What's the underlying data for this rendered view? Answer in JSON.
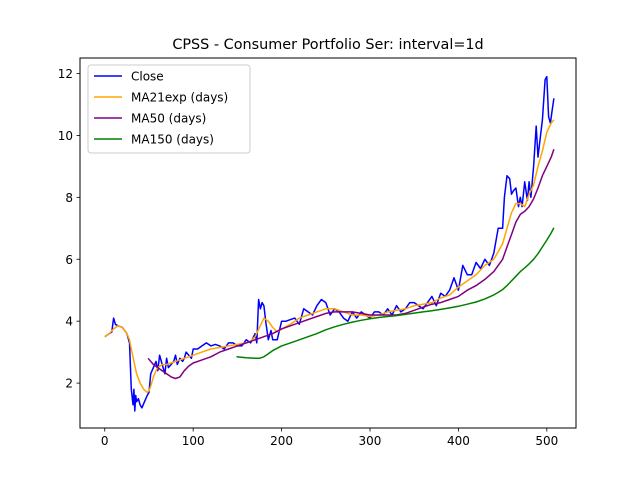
{
  "chart_data": {
    "type": "line",
    "title": "CPSS - Consumer Portfolio Ser: interval=1d",
    "xlabel": "",
    "ylabel": "",
    "xlim": [
      -28,
      533
    ],
    "ylim": [
      0.55,
      12.5
    ],
    "xticks": [
      0,
      100,
      200,
      300,
      400,
      500
    ],
    "yticks": [
      2,
      4,
      6,
      8,
      10,
      12
    ],
    "grid": false,
    "legend_position": "top-left",
    "series": [
      {
        "name": "Close",
        "color": "#0000ff",
        "x": [
          0,
          5,
          8,
          10,
          12,
          15,
          20,
          25,
          28,
          30,
          32,
          33,
          34,
          35,
          36,
          38,
          40,
          42,
          45,
          48,
          50,
          52,
          55,
          58,
          60,
          62,
          65,
          68,
          70,
          72,
          75,
          78,
          80,
          82,
          85,
          88,
          90,
          92,
          95,
          98,
          100,
          105,
          110,
          115,
          120,
          125,
          130,
          135,
          140,
          145,
          150,
          155,
          160,
          165,
          170,
          172,
          174,
          176,
          178,
          180,
          182,
          185,
          188,
          190,
          195,
          200,
          205,
          210,
          215,
          220,
          225,
          230,
          235,
          240,
          245,
          250,
          255,
          260,
          265,
          270,
          275,
          280,
          285,
          290,
          295,
          300,
          305,
          310,
          315,
          320,
          325,
          330,
          335,
          340,
          345,
          350,
          355,
          360,
          365,
          370,
          375,
          380,
          385,
          390,
          395,
          400,
          405,
          410,
          415,
          420,
          425,
          430,
          435,
          440,
          445,
          450,
          452,
          455,
          458,
          460,
          462,
          465,
          468,
          470,
          472,
          475,
          478,
          480,
          482,
          485,
          488,
          490,
          492,
          495,
          498,
          500,
          502,
          504,
          506,
          508
        ],
        "values": [
          3.5,
          3.6,
          3.65,
          4.1,
          3.9,
          3.85,
          3.8,
          3.6,
          3.3,
          1.8,
          1.3,
          1.8,
          1.1,
          1.6,
          1.4,
          1.5,
          1.3,
          1.2,
          1.4,
          1.6,
          1.7,
          2.3,
          2.5,
          2.7,
          2.4,
          2.9,
          2.6,
          2.3,
          2.8,
          2.5,
          2.6,
          2.7,
          2.9,
          2.6,
          2.8,
          2.7,
          2.8,
          3.0,
          2.9,
          2.8,
          3.1,
          3.1,
          3.2,
          3.3,
          3.2,
          3.25,
          3.2,
          3.1,
          3.3,
          3.3,
          3.2,
          3.2,
          3.4,
          3.3,
          3.6,
          3.3,
          4.7,
          4.4,
          4.6,
          4.5,
          4.0,
          3.4,
          3.7,
          3.4,
          3.4,
          4.0,
          4.0,
          4.05,
          4.1,
          3.9,
          4.4,
          4.3,
          4.2,
          4.5,
          4.7,
          4.6,
          4.2,
          4.4,
          4.3,
          4.1,
          4.0,
          4.3,
          4.1,
          4.3,
          4.2,
          4.1,
          4.3,
          4.3,
          4.2,
          4.4,
          4.2,
          4.5,
          4.3,
          4.4,
          4.6,
          4.6,
          4.5,
          4.4,
          4.6,
          4.8,
          4.5,
          4.9,
          4.8,
          5.0,
          5.4,
          5.0,
          5.8,
          5.5,
          5.5,
          5.9,
          5.7,
          6.0,
          5.8,
          6.2,
          7.0,
          7.0,
          8.0,
          8.7,
          8.6,
          8.1,
          8.2,
          8.3,
          7.7,
          8.0,
          7.7,
          8.5,
          7.9,
          8.5,
          8.0,
          9.0,
          10.3,
          9.3,
          9.8,
          10.5,
          11.8,
          11.9,
          10.6,
          10.4,
          10.8,
          11.2
        ]
      },
      {
        "name": "MA21exp (days)",
        "color": "#ffa500",
        "x": [
          0,
          5,
          10,
          15,
          20,
          25,
          28,
          30,
          33,
          36,
          40,
          44,
          48,
          50,
          52,
          55,
          58,
          60,
          65,
          70,
          75,
          80,
          85,
          90,
          95,
          100,
          110,
          120,
          130,
          140,
          150,
          160,
          165,
          170,
          175,
          180,
          185,
          190,
          195,
          200,
          210,
          220,
          230,
          240,
          250,
          260,
          270,
          280,
          290,
          300,
          310,
          320,
          330,
          340,
          350,
          360,
          370,
          380,
          390,
          400,
          410,
          420,
          430,
          440,
          450,
          455,
          460,
          465,
          470,
          475,
          480,
          485,
          490,
          495,
          500,
          505,
          508
        ],
        "values": [
          3.5,
          3.6,
          3.75,
          3.85,
          3.8,
          3.6,
          3.4,
          3.1,
          2.7,
          2.3,
          2.0,
          1.8,
          1.7,
          1.75,
          1.9,
          2.2,
          2.4,
          2.5,
          2.6,
          2.6,
          2.65,
          2.7,
          2.75,
          2.8,
          2.85,
          2.9,
          3.0,
          3.1,
          3.15,
          3.2,
          3.25,
          3.3,
          3.35,
          3.5,
          3.8,
          4.1,
          4.0,
          3.8,
          3.65,
          3.75,
          3.9,
          4.1,
          4.2,
          4.3,
          4.4,
          4.4,
          4.3,
          4.2,
          4.2,
          4.15,
          4.2,
          4.3,
          4.35,
          4.4,
          4.5,
          4.55,
          4.6,
          4.75,
          4.85,
          5.1,
          5.3,
          5.5,
          5.8,
          6.0,
          6.5,
          7.0,
          7.5,
          7.8,
          7.8,
          7.7,
          8.1,
          8.4,
          9.0,
          9.5,
          10.1,
          10.4,
          10.5
        ]
      },
      {
        "name": "MA50 (days)",
        "color": "#800080",
        "x": [
          49,
          55,
          60,
          65,
          70,
          75,
          80,
          85,
          90,
          95,
          100,
          110,
          120,
          130,
          140,
          150,
          160,
          170,
          180,
          190,
          200,
          210,
          220,
          230,
          240,
          250,
          260,
          270,
          280,
          290,
          300,
          310,
          320,
          330,
          340,
          350,
          360,
          370,
          380,
          390,
          400,
          410,
          420,
          430,
          440,
          450,
          455,
          460,
          465,
          470,
          475,
          480,
          485,
          490,
          495,
          500,
          505,
          508
        ],
        "values": [
          2.8,
          2.6,
          2.5,
          2.4,
          2.3,
          2.2,
          2.15,
          2.2,
          2.4,
          2.55,
          2.65,
          2.75,
          2.85,
          3.0,
          3.1,
          3.2,
          3.3,
          3.4,
          3.5,
          3.6,
          3.75,
          3.85,
          3.95,
          4.05,
          4.15,
          4.25,
          4.3,
          4.3,
          4.3,
          4.25,
          4.2,
          4.2,
          4.2,
          4.2,
          4.25,
          4.35,
          4.45,
          4.55,
          4.6,
          4.7,
          4.8,
          5.0,
          5.15,
          5.35,
          5.6,
          6.0,
          6.4,
          6.8,
          7.2,
          7.45,
          7.55,
          7.7,
          7.95,
          8.3,
          8.7,
          9.0,
          9.3,
          9.55
        ]
      },
      {
        "name": "MA150 (days)",
        "color": "#008000",
        "x": [
          149,
          160,
          170,
          175,
          180,
          185,
          190,
          200,
          210,
          220,
          230,
          240,
          250,
          260,
          270,
          280,
          290,
          300,
          310,
          320,
          330,
          340,
          350,
          360,
          370,
          380,
          390,
          400,
          410,
          420,
          430,
          440,
          445,
          450,
          455,
          460,
          465,
          470,
          475,
          480,
          485,
          490,
          495,
          500,
          505,
          508
        ],
        "values": [
          2.85,
          2.82,
          2.8,
          2.8,
          2.85,
          2.95,
          3.05,
          3.2,
          3.3,
          3.4,
          3.5,
          3.6,
          3.72,
          3.82,
          3.9,
          3.97,
          4.03,
          4.08,
          4.12,
          4.15,
          4.18,
          4.22,
          4.26,
          4.3,
          4.34,
          4.38,
          4.43,
          4.48,
          4.55,
          4.62,
          4.72,
          4.85,
          4.93,
          5.02,
          5.15,
          5.3,
          5.45,
          5.6,
          5.72,
          5.85,
          6.0,
          6.18,
          6.4,
          6.62,
          6.85,
          7.02
        ]
      }
    ]
  }
}
